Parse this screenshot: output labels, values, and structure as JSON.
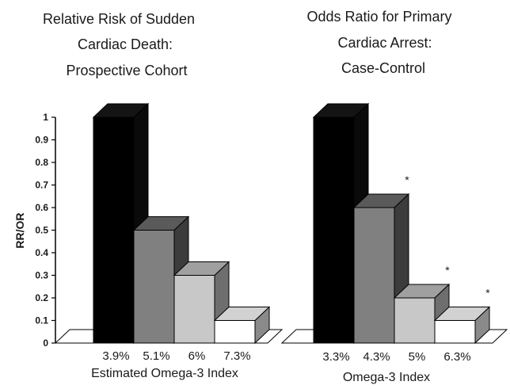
{
  "chart_data": {
    "type": "bar",
    "shared_y_axis": {
      "label": "RR/OR",
      "ylim": [
        0,
        1
      ],
      "ticks": [
        "0",
        "0.1",
        "0.2",
        "0.3",
        "0.4",
        "0.5",
        "0.6",
        "0.7",
        "0.8",
        "0.9",
        "1"
      ]
    },
    "panels": [
      {
        "title_lines": [
          "Relative Risk of Sudden",
          "Cardiac Death:",
          "Prospective Cohort"
        ],
        "xlabel": "Estimated Omega-3  Index",
        "categories": [
          "3.9%",
          "5.1%",
          "6%",
          "7.3%"
        ],
        "values": [
          1.0,
          0.5,
          0.3,
          0.1
        ],
        "significant": [
          false,
          false,
          false,
          false
        ]
      },
      {
        "title_lines": [
          "Odds Ratio for Primary",
          "Cardiac Arrest:",
          "Case-Control"
        ],
        "xlabel": "Omega-3 Index",
        "categories": [
          "3.3%",
          "4.3%",
          "5%",
          "6.3%"
        ],
        "values": [
          1.0,
          0.6,
          0.2,
          0.1
        ],
        "significant": [
          false,
          true,
          true,
          true
        ]
      }
    ],
    "significance_marker": "*",
    "bar_colors": [
      "#000000",
      "#808080",
      "#c8c8c8",
      "#ffffff"
    ],
    "bar_side_colors": [
      "#0a0a0a",
      "#3c3c3c",
      "#6e6e6e",
      "#8a8a8a"
    ],
    "bar_top_colors": [
      "#141414",
      "#5a5a5a",
      "#a0a0a0",
      "#d2d2d2"
    ],
    "grid": false,
    "legend": "none"
  }
}
